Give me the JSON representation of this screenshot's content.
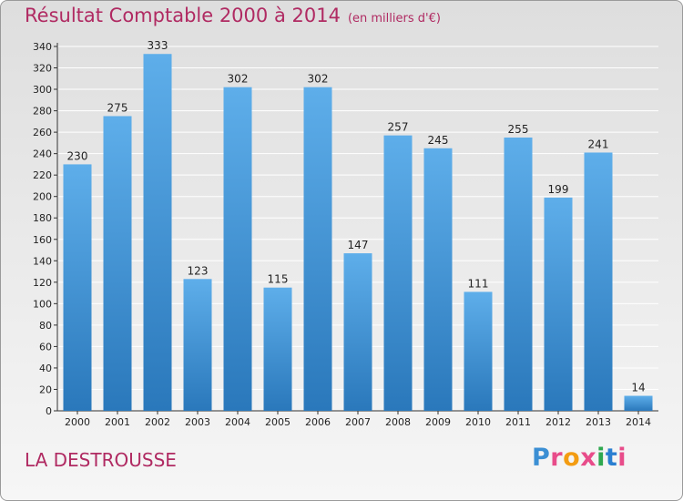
{
  "header": {
    "title": "Résultat Comptable 2000 à 2014",
    "unit": "(en milliers d'€)"
  },
  "footer": {
    "place": "LA DESTROUSSE",
    "logo_letters": [
      "P",
      "r",
      "o",
      "x",
      "i",
      "t",
      "i"
    ],
    "logo_colors": [
      "#3b8fd4",
      "#e84c8a",
      "#f39c12",
      "#e84c8a",
      "#2ea84f",
      "#2a7fd1",
      "#e84c8a"
    ]
  },
  "colors": {
    "title": "#b02a62",
    "bar_light": "#5eaeea",
    "bar_dark": "#2a78bb",
    "grid": "#ffffff"
  },
  "chart_data": {
    "type": "bar",
    "title": "Résultat Comptable 2000 à 2014",
    "categories": [
      "2000",
      "2001",
      "2002",
      "2003",
      "2004",
      "2005",
      "2006",
      "2007",
      "2008",
      "2009",
      "2010",
      "2011",
      "2012",
      "2013",
      "2014"
    ],
    "values": [
      230,
      275,
      333,
      123,
      302,
      115,
      302,
      147,
      257,
      245,
      111,
      255,
      199,
      241,
      14
    ],
    "ylim": [
      0,
      340
    ],
    "yticks": [
      0,
      20,
      40,
      60,
      80,
      100,
      120,
      140,
      160,
      180,
      200,
      220,
      240,
      260,
      280,
      300,
      320,
      340
    ],
    "grid": true,
    "data_labels": true
  }
}
